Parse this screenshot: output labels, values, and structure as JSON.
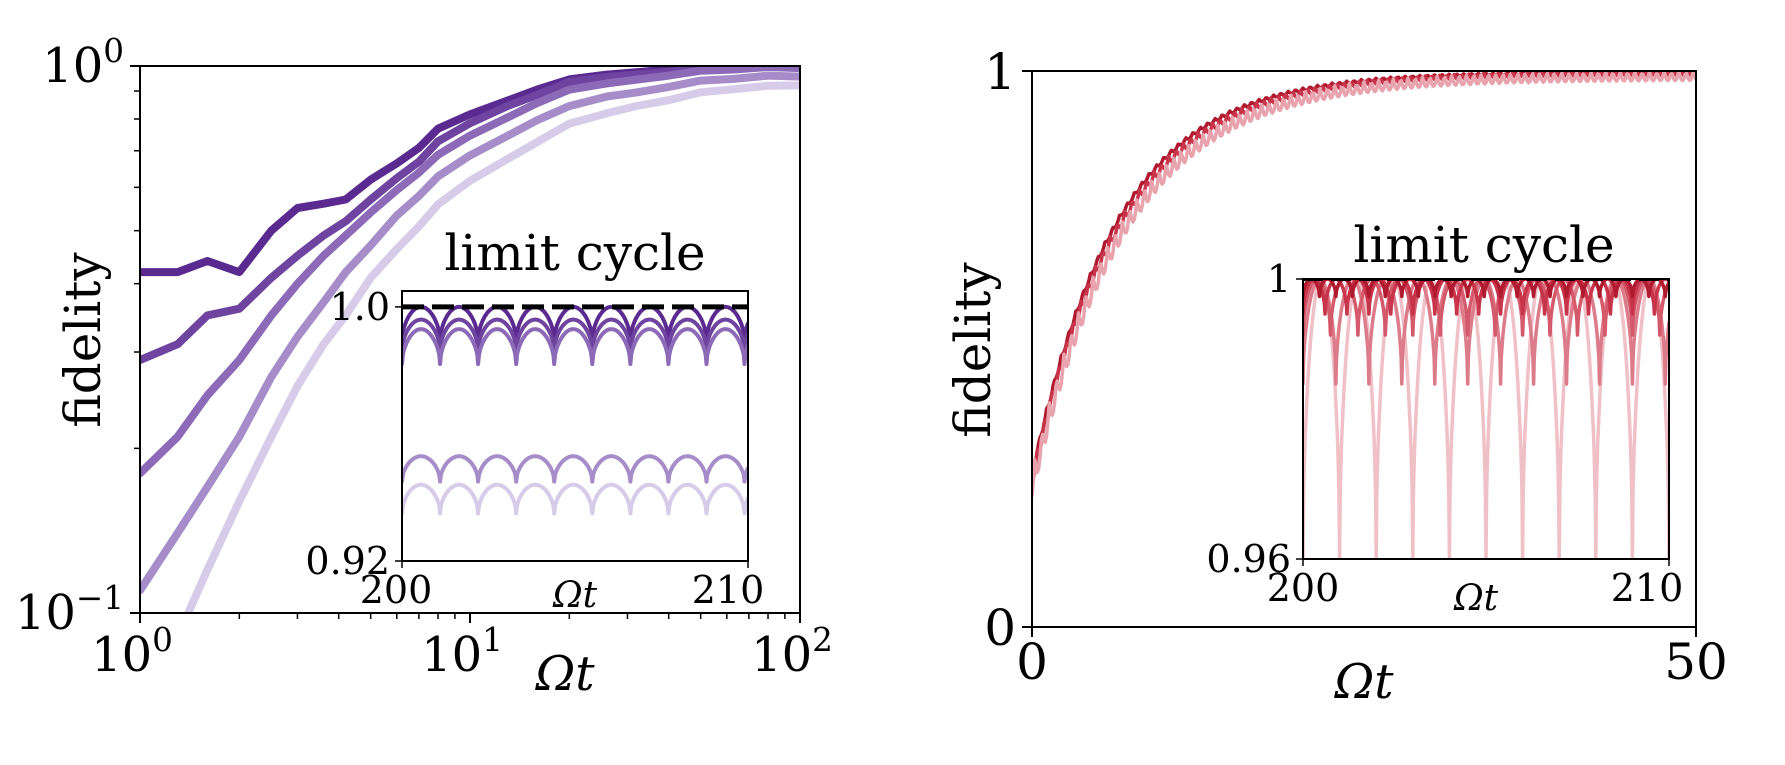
{
  "chart_data": [
    {
      "type": "line",
      "panel": "left",
      "xscale": "log",
      "yscale": "log",
      "xlim": [
        1,
        100
      ],
      "ylim": [
        0.1,
        1
      ],
      "xlabel": "Ωt",
      "ylabel": "fidelity",
      "x_ticks": [
        {
          "value": 1,
          "base": "10",
          "exp": "0"
        },
        {
          "value": 10,
          "base": "10",
          "exp": "1"
        },
        {
          "value": 100,
          "base": "10",
          "exp": "2"
        }
      ],
      "y_ticks": [
        {
          "value": 0.1,
          "base": "10",
          "exp": "−1"
        },
        {
          "value": 1,
          "base": "10",
          "exp": "0"
        }
      ],
      "series": [
        {
          "color": "#5b2a91",
          "x": [
            1,
            1.3,
            1.6,
            2.0,
            2.5,
            3.0,
            3.6,
            4.2,
            5,
            6,
            7,
            8,
            10,
            13,
            16,
            20,
            26,
            32,
            40,
            50,
            63,
            80,
            100
          ],
          "y": [
            0.42,
            0.42,
            0.44,
            0.42,
            0.5,
            0.55,
            0.56,
            0.57,
            0.62,
            0.66,
            0.71,
            0.77,
            0.82,
            0.87,
            0.91,
            0.94,
            0.965,
            0.98,
            0.99,
            0.995,
            0.998,
            0.999,
            1.0
          ]
        },
        {
          "color": "#6e44a0",
          "x": [
            1,
            1.3,
            1.6,
            2.0,
            2.5,
            3.0,
            3.6,
            4.2,
            5,
            6,
            7,
            8,
            10,
            13,
            16,
            20,
            26,
            32,
            40,
            50,
            63,
            80,
            100
          ],
          "y": [
            0.29,
            0.31,
            0.35,
            0.36,
            0.41,
            0.45,
            0.49,
            0.52,
            0.57,
            0.62,
            0.67,
            0.73,
            0.79,
            0.85,
            0.89,
            0.93,
            0.955,
            0.97,
            0.98,
            0.99,
            0.995,
            0.998,
            1.0
          ]
        },
        {
          "color": "#8c6ab8",
          "x": [
            1,
            1.3,
            1.6,
            2.0,
            2.5,
            3.0,
            3.6,
            4.2,
            5,
            6,
            7,
            8,
            10,
            13,
            16,
            20,
            26,
            32,
            40,
            50,
            63,
            80,
            100
          ],
          "y": [
            0.18,
            0.21,
            0.25,
            0.29,
            0.35,
            0.4,
            0.45,
            0.49,
            0.54,
            0.59,
            0.64,
            0.69,
            0.75,
            0.81,
            0.86,
            0.9,
            0.93,
            0.95,
            0.965,
            0.975,
            0.983,
            0.99,
            0.995
          ]
        },
        {
          "color": "#a68dc9",
          "x": [
            1,
            1.3,
            1.6,
            2.0,
            2.5,
            3.0,
            3.6,
            4.2,
            5,
            6,
            7,
            8,
            10,
            13,
            16,
            20,
            26,
            32,
            40,
            50,
            63,
            80,
            100
          ],
          "y": [
            0.11,
            0.14,
            0.17,
            0.21,
            0.27,
            0.32,
            0.37,
            0.42,
            0.47,
            0.53,
            0.58,
            0.63,
            0.69,
            0.75,
            0.8,
            0.84,
            0.88,
            0.9,
            0.92,
            0.935,
            0.945,
            0.955,
            0.96
          ]
        },
        {
          "color": "#d6cbe8",
          "x": [
            1.4,
            1.6,
            2.0,
            2.5,
            3.0,
            3.6,
            4.2,
            5,
            6,
            7,
            8,
            10,
            13,
            16,
            20,
            26,
            32,
            40,
            50,
            63,
            80,
            100
          ],
          "y": [
            0.1,
            0.12,
            0.16,
            0.21,
            0.26,
            0.31,
            0.35,
            0.41,
            0.46,
            0.51,
            0.56,
            0.62,
            0.68,
            0.73,
            0.78,
            0.82,
            0.85,
            0.87,
            0.89,
            0.905,
            0.915,
            0.925
          ]
        }
      ],
      "inset": {
        "title": "limit cycle",
        "xlabel": "Ωt",
        "xlim": [
          200,
          210
        ],
        "ylim": [
          0.92,
          1.005
        ],
        "x_ticks": [
          "200",
          "210"
        ],
        "y_ticks": [
          {
            "value": 1.0,
            "label": "1.0"
          },
          {
            "value": 0.92,
            "label": "0.92"
          }
        ],
        "reference_line": {
          "y": 1.0,
          "color": "#000000",
          "style": "dashed"
        },
        "period": 1.1,
        "series": [
          {
            "color": "#5b2a91",
            "max": 1.0,
            "min": 0.989
          },
          {
            "color": "#6e44a0",
            "max": 0.996,
            "min": 0.986
          },
          {
            "color": "#8c6ab8",
            "max": 0.993,
            "min": 0.982
          },
          {
            "color": "#a68dc9",
            "max": 0.953,
            "min": 0.945
          },
          {
            "color": "#d6cbe8",
            "max": 0.944,
            "min": 0.935
          }
        ]
      }
    },
    {
      "type": "line",
      "panel": "right",
      "xscale": "linear",
      "yscale": "linear",
      "xlim": [
        0,
        50
      ],
      "ylim": [
        0,
        1
      ],
      "xlabel": "Ωt",
      "ylabel": "fidelity",
      "x_ticks": [
        "0",
        "50"
      ],
      "y_ticks": [
        "0",
        "1"
      ],
      "series": [
        {
          "color": "#b01a2e",
          "rate": 0.155,
          "y0": 0.28,
          "noise": 0.004
        },
        {
          "color": "#c8344a",
          "rate": 0.15,
          "y0": 0.28,
          "noise": 0.008
        },
        {
          "color": "#e8a3ad",
          "rate": 0.145,
          "y0": 0.28,
          "noise": 0.016
        }
      ],
      "inset": {
        "title": "limit cycle",
        "xlabel": "Ωt",
        "xlim": [
          200,
          210
        ],
        "ylim": [
          0.96,
          1.0
        ],
        "x_ticks": [
          "200",
          "210"
        ],
        "y_ticks": [
          {
            "value": 1.0,
            "label": "1"
          },
          {
            "value": 0.96,
            "label": "0.96"
          }
        ],
        "reference_line": {
          "y": 1.0,
          "color": "#000000",
          "style": "dashed"
        },
        "series": [
          {
            "color": "#b01a2e",
            "period": 0.45,
            "min": 0.9975
          },
          {
            "color": "#c8344a",
            "period": 0.6,
            "min": 0.995
          },
          {
            "color": "#d4596b",
            "period": 0.75,
            "min": 0.992
          },
          {
            "color": "#dc7b89",
            "period": 0.9,
            "min": 0.985
          },
          {
            "color": "#f0c0c7",
            "period": 1.0,
            "min": 0.96
          }
        ]
      }
    }
  ]
}
